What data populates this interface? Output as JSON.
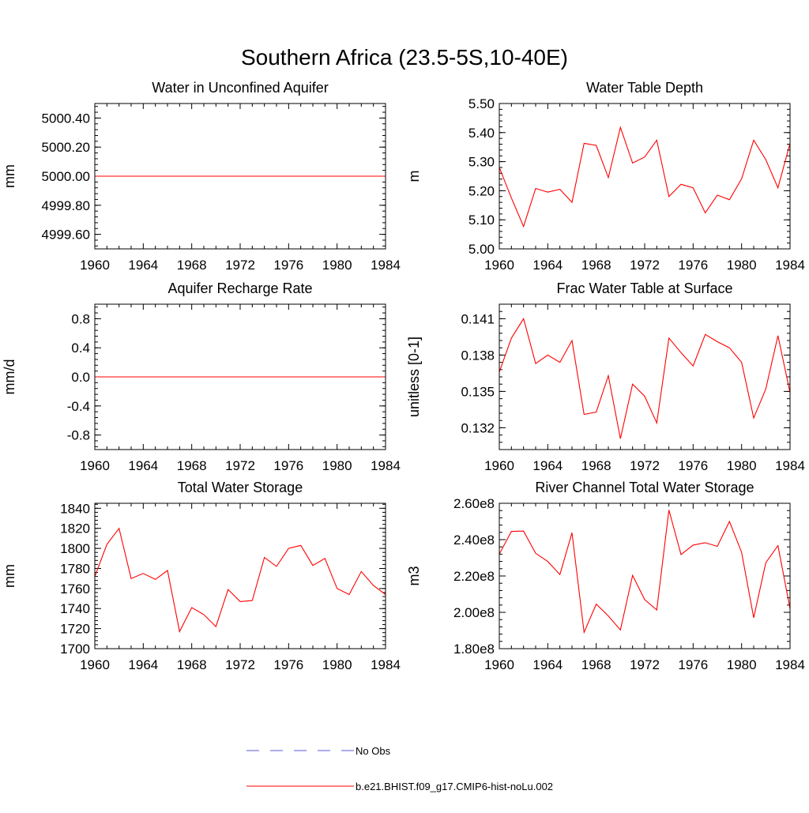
{
  "figure": {
    "title": "Southern Africa (23.5-5S,10-40E)"
  },
  "legend": {
    "placement": "bottom-center",
    "entries": [
      {
        "label": "No Obs",
        "style": "dashed",
        "color": "#5b5bd6"
      },
      {
        "label": "b.e21.BHIST.f09_g17.CMIP6-hist-noLu.002",
        "style": "solid",
        "color": "#ff0000"
      }
    ]
  },
  "chart_data": [
    {
      "type": "line",
      "title": "Water in Unconfined Aquifer",
      "ylabel": "mm",
      "xlim": [
        1960,
        1984
      ],
      "ylim": [
        4999.5,
        5000.5
      ],
      "xticks": [
        "1960",
        "1964",
        "1968",
        "1972",
        "1976",
        "1980",
        "1984"
      ],
      "yticks": [
        "4999.60",
        "4999.80",
        "5000.00",
        "5000.20",
        "5000.40"
      ],
      "ytick_values": [
        4999.6,
        4999.8,
        5000.0,
        5000.2,
        5000.4
      ],
      "series": [
        {
          "color": "#ff0000",
          "x": [
            1960,
            1961,
            1962,
            1963,
            1964,
            1965,
            1966,
            1967,
            1968,
            1969,
            1970,
            1971,
            1972,
            1973,
            1974,
            1975,
            1976,
            1977,
            1978,
            1979,
            1980,
            1981,
            1982,
            1983,
            1984
          ],
          "y": [
            5000,
            5000,
            5000,
            5000,
            5000,
            5000,
            5000,
            5000,
            5000,
            5000,
            5000,
            5000,
            5000,
            5000,
            5000,
            5000,
            5000,
            5000,
            5000,
            5000,
            5000,
            5000,
            5000,
            5000,
            5000
          ]
        }
      ]
    },
    {
      "type": "line",
      "title": "Water Table Depth",
      "ylabel": "m",
      "xlim": [
        1960,
        1984
      ],
      "ylim": [
        5.0,
        5.5
      ],
      "xticks": [
        "1960",
        "1964",
        "1968",
        "1972",
        "1976",
        "1980",
        "1984"
      ],
      "yticks": [
        "5.00",
        "5.10",
        "5.20",
        "5.30",
        "5.40",
        "5.50"
      ],
      "ytick_values": [
        5.0,
        5.1,
        5.2,
        5.3,
        5.4,
        5.5
      ],
      "series": [
        {
          "color": "#ff0000",
          "x": [
            1960,
            1961,
            1962,
            1963,
            1964,
            1965,
            1966,
            1967,
            1968,
            1969,
            1970,
            1971,
            1972,
            1973,
            1974,
            1975,
            1976,
            1977,
            1978,
            1979,
            1980,
            1981,
            1982,
            1983,
            1984
          ],
          "y": [
            5.28,
            5.175,
            5.077,
            5.208,
            5.195,
            5.205,
            5.16,
            5.363,
            5.356,
            5.245,
            5.418,
            5.295,
            5.316,
            5.374,
            5.18,
            5.222,
            5.21,
            5.124,
            5.185,
            5.169,
            5.241,
            5.374,
            5.307,
            5.21,
            5.363
          ]
        }
      ]
    },
    {
      "type": "line",
      "title": "Aquifer Recharge Rate",
      "ylabel": "mm/d",
      "xlim": [
        1960,
        1984
      ],
      "ylim": [
        -1.0,
        1.0
      ],
      "xticks": [
        "1960",
        "1964",
        "1968",
        "1972",
        "1976",
        "1980",
        "1984"
      ],
      "yticks": [
        "-0.8",
        "-0.4",
        "0.0",
        "0.4",
        "0.8"
      ],
      "ytick_values": [
        -0.8,
        -0.4,
        0.0,
        0.4,
        0.8
      ],
      "series": [
        {
          "color": "#ff0000",
          "x": [
            1960,
            1961,
            1962,
            1963,
            1964,
            1965,
            1966,
            1967,
            1968,
            1969,
            1970,
            1971,
            1972,
            1973,
            1974,
            1975,
            1976,
            1977,
            1978,
            1979,
            1980,
            1981,
            1982,
            1983,
            1984
          ],
          "y": [
            0,
            0,
            0,
            0,
            0,
            0,
            0,
            0,
            0,
            0,
            0,
            0,
            0,
            0,
            0,
            0,
            0,
            0,
            0,
            0,
            0,
            0,
            0,
            0,
            0
          ]
        }
      ]
    },
    {
      "type": "line",
      "title": "Frac Water Table at Surface",
      "ylabel": "unitless [0-1]",
      "xlim": [
        1960,
        1984
      ],
      "ylim": [
        0.1302,
        0.1422
      ],
      "xticks": [
        "1960",
        "1964",
        "1968",
        "1972",
        "1976",
        "1980",
        "1984"
      ],
      "yticks": [
        "0.132",
        "0.135",
        "0.138",
        "0.141"
      ],
      "ytick_values": [
        0.132,
        0.135,
        0.138,
        0.141
      ],
      "series": [
        {
          "color": "#ff0000",
          "x": [
            1960,
            1961,
            1962,
            1963,
            1964,
            1965,
            1966,
            1967,
            1968,
            1969,
            1970,
            1971,
            1972,
            1973,
            1974,
            1975,
            1976,
            1977,
            1978,
            1979,
            1980,
            1981,
            1982,
            1983,
            1984
          ],
          "y": [
            0.1366,
            0.1394,
            0.141,
            0.1373,
            0.138,
            0.1374,
            0.1392,
            0.1331,
            0.1333,
            0.1363,
            0.1311,
            0.1356,
            0.1346,
            0.1324,
            0.1394,
            0.1382,
            0.1371,
            0.1397,
            0.1391,
            0.1386,
            0.1374,
            0.1328,
            0.1352,
            0.1396,
            0.1349
          ]
        }
      ]
    },
    {
      "type": "line",
      "title": "Total Water Storage",
      "ylabel": "mm",
      "xlim": [
        1960,
        1984
      ],
      "ylim": [
        1700,
        1845
      ],
      "xticks": [
        "1960",
        "1964",
        "1968",
        "1972",
        "1976",
        "1980",
        "1984"
      ],
      "yticks": [
        "1700",
        "1720",
        "1740",
        "1760",
        "1780",
        "1800",
        "1820",
        "1840"
      ],
      "ytick_values": [
        1700,
        1720,
        1740,
        1760,
        1780,
        1800,
        1820,
        1840
      ],
      "series": [
        {
          "color": "#ff0000",
          "x": [
            1960,
            1961,
            1962,
            1963,
            1964,
            1965,
            1966,
            1967,
            1968,
            1969,
            1970,
            1971,
            1972,
            1973,
            1974,
            1975,
            1976,
            1977,
            1978,
            1979,
            1980,
            1981,
            1982,
            1983,
            1984
          ],
          "y": [
            1772,
            1804,
            1820,
            1770,
            1775,
            1769,
            1778,
            1717,
            1741,
            1734,
            1722,
            1759,
            1747,
            1748,
            1791,
            1782,
            1800,
            1803,
            1783,
            1790,
            1760,
            1754,
            1777,
            1763,
            1754
          ]
        }
      ]
    },
    {
      "type": "line",
      "title": "River Channel Total Water Storage",
      "ylabel": "m3",
      "xlim": [
        1960,
        1984
      ],
      "ylim": [
        180000000,
        260000000
      ],
      "xticks": [
        "1960",
        "1964",
        "1968",
        "1972",
        "1976",
        "1980",
        "1984"
      ],
      "yticks": [
        "1.80e8",
        "2.00e8",
        "2.20e8",
        "2.40e8",
        "2.60e8"
      ],
      "ytick_values": [
        180000000,
        200000000,
        220000000,
        240000000,
        260000000
      ],
      "series": [
        {
          "color": "#ff0000",
          "x": [
            1960,
            1961,
            1962,
            1963,
            1964,
            1965,
            1966,
            1967,
            1968,
            1969,
            1970,
            1971,
            1972,
            1973,
            1974,
            1975,
            1976,
            1977,
            1978,
            1979,
            1980,
            1981,
            1982,
            1983,
            1984
          ],
          "y": [
            232000000,
            244500000,
            244700000,
            232500000,
            228000000,
            220800000,
            243800000,
            189000000,
            204500000,
            198000000,
            190300000,
            220300000,
            207000000,
            201300000,
            256300000,
            231800000,
            237000000,
            238300000,
            236300000,
            250000000,
            233000000,
            197000000,
            227300000,
            236700000,
            202000000
          ]
        }
      ]
    }
  ]
}
